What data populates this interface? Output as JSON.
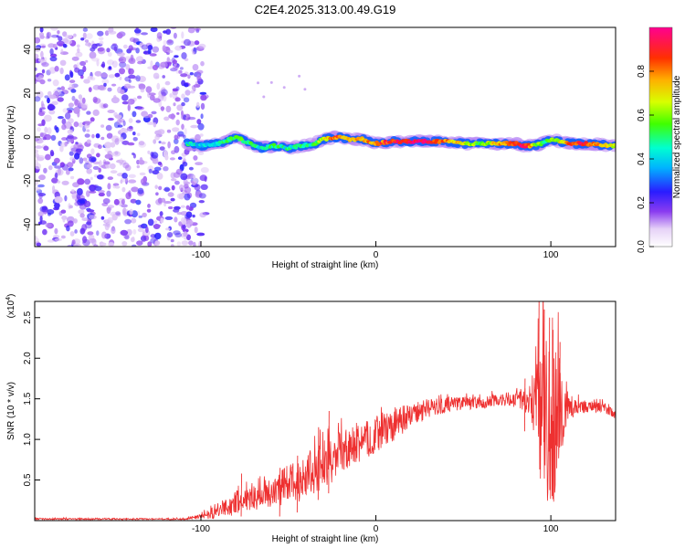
{
  "title": "C2E4.2025.313.00.49.G19",
  "chart_data": [
    {
      "type": "heatmap",
      "xlabel": "Height of straight line (km)",
      "ylabel": "Frequency (Hz)",
      "xlim": [
        -195,
        137
      ],
      "ylim": [
        -50,
        50
      ],
      "xticks": [
        -100,
        0,
        100
      ],
      "yticks": [
        -40,
        -20,
        0,
        20,
        40
      ],
      "colorbar": {
        "label": "Normalized spectral amplitude",
        "range": [
          0,
          1
        ],
        "ticks": [
          0.0,
          0.2,
          0.4,
          0.6,
          0.8
        ],
        "tick_labels": [
          "0.0",
          "0.2",
          "0.4",
          "0.6",
          "0.8"
        ]
      },
      "noise_region_x": [
        -195,
        -103
      ],
      "signal_track": {
        "x": [
          -108,
          -100,
          -90,
          -80,
          -72,
          -65,
          -58,
          -50,
          -42,
          -35,
          -30,
          -22,
          -15,
          -8,
          0,
          10,
          20,
          30,
          40,
          50,
          60,
          70,
          80,
          85,
          90,
          95,
          100,
          110,
          120,
          137
        ],
        "freq": [
          -3,
          -4,
          -3,
          0,
          -3,
          -5,
          -4,
          -5,
          -4,
          -3,
          -1,
          0,
          -1,
          -1,
          -3,
          -2,
          -2,
          -2,
          -2,
          -3,
          -3,
          -3,
          -3,
          -4,
          -4,
          -3,
          -1,
          -3,
          -3,
          -4
        ],
        "amp": [
          0.45,
          0.4,
          0.45,
          0.55,
          0.5,
          0.45,
          0.5,
          0.45,
          0.5,
          0.5,
          0.65,
          0.85,
          0.7,
          0.75,
          0.8,
          0.9,
          0.95,
          0.95,
          0.8,
          0.65,
          0.55,
          0.75,
          0.9,
          0.95,
          0.7,
          0.5,
          0.55,
          0.8,
          0.9,
          0.6
        ]
      }
    },
    {
      "type": "line",
      "xlabel": "Height of straight line (km)",
      "ylabel": "SNR (10 * v/v)",
      "y_multiplier": "(x10",
      "y_multiplier_exp": "4",
      "y_multiplier_close": ")",
      "xlim": [
        -195,
        137
      ],
      "ylim": [
        0,
        2.7
      ],
      "xticks": [
        -100,
        0,
        100
      ],
      "yticks": [
        0.5,
        1.0,
        1.5,
        2.0,
        2.5
      ],
      "ytick_labels": [
        "0.5",
        "1.0",
        "1.5",
        "2.0",
        "2.5"
      ],
      "color": "#ee3030",
      "envelope": {
        "x": [
          -195,
          -110,
          -100,
          -90,
          -80,
          -70,
          -60,
          -50,
          -40,
          -30,
          -20,
          -10,
          0,
          10,
          20,
          30,
          40,
          50,
          60,
          70,
          80,
          88,
          92,
          95,
          98,
          100,
          103,
          106,
          110,
          115,
          120,
          130,
          137
        ],
        "base": [
          0.02,
          0.02,
          0.05,
          0.12,
          0.22,
          0.28,
          0.35,
          0.45,
          0.55,
          0.7,
          0.82,
          0.95,
          1.05,
          1.18,
          1.3,
          1.38,
          1.42,
          1.45,
          1.45,
          1.48,
          1.5,
          1.5,
          1.45,
          1.4,
          1.3,
          1.2,
          1.2,
          1.35,
          1.4,
          1.42,
          1.4,
          1.4,
          1.3
        ],
        "amp": [
          0.01,
          0.01,
          0.03,
          0.1,
          0.15,
          0.15,
          0.2,
          0.25,
          0.3,
          0.3,
          0.28,
          0.25,
          0.22,
          0.2,
          0.15,
          0.12,
          0.1,
          0.08,
          0.08,
          0.08,
          0.1,
          0.2,
          0.6,
          1.1,
          1.2,
          1.2,
          1.0,
          0.6,
          0.2,
          0.1,
          0.08,
          0.06,
          0.06
        ]
      },
      "peaks": [
        {
          "x": -77,
          "y": 0.58
        },
        {
          "x": -55,
          "y": 0.65
        },
        {
          "x": -45,
          "y": 0.8
        },
        {
          "x": -33,
          "y": 1.15
        },
        {
          "x": -27,
          "y": 1.35
        },
        {
          "x": 85,
          "y": 1.75
        },
        {
          "x": 93,
          "y": 2.7
        },
        {
          "x": 96,
          "y": 2.6
        },
        {
          "x": 99,
          "y": 2.5
        },
        {
          "x": 101,
          "y": 2.35
        },
        {
          "x": 105,
          "y": 2.2
        }
      ]
    }
  ]
}
